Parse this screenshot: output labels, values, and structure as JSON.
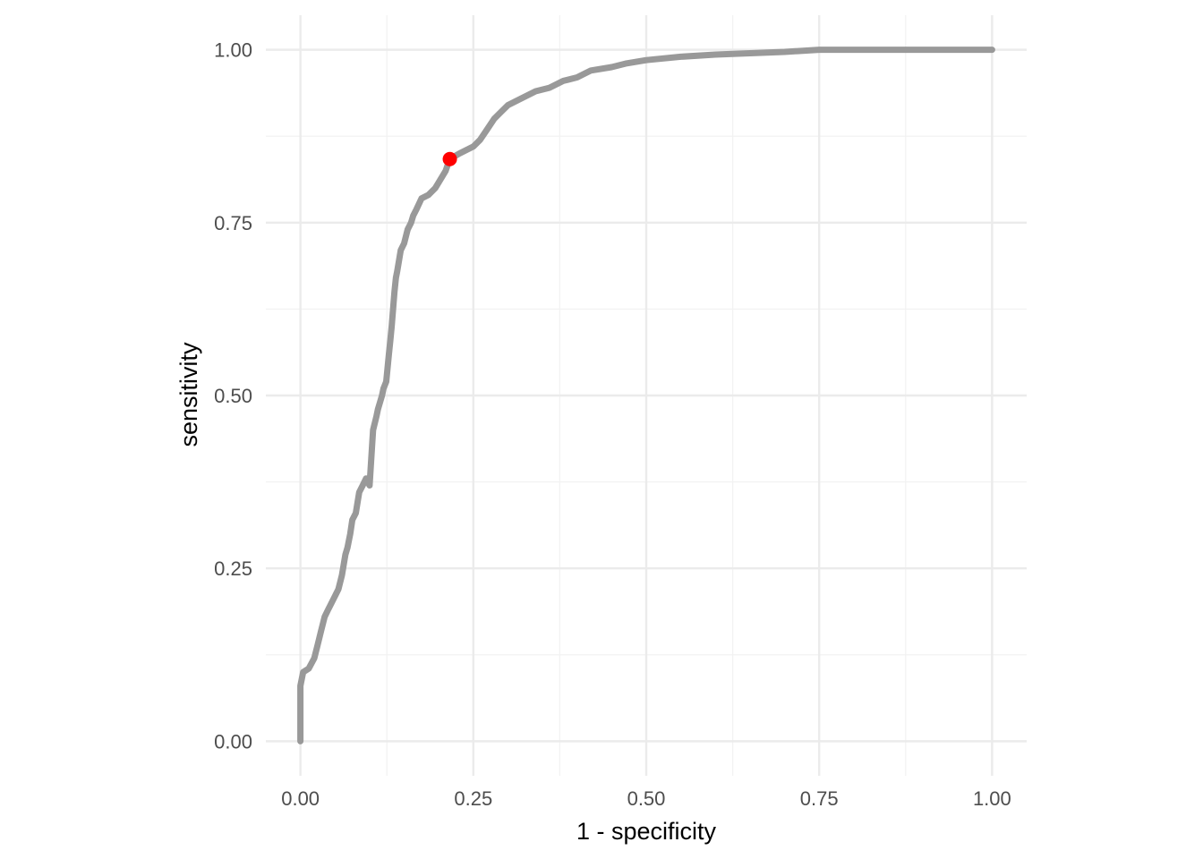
{
  "chart_data": {
    "type": "line",
    "title": "",
    "xlabel": "1 - specificity",
    "ylabel": "sensitivity",
    "xlim": [
      -0.05,
      1.05
    ],
    "ylim": [
      -0.05,
      1.05
    ],
    "x_ticks": [
      0,
      0.25,
      0.5,
      0.75,
      1
    ],
    "x_tick_labels": [
      "0.00",
      "0.25",
      "0.50",
      "0.75",
      "1.00"
    ],
    "y_ticks": [
      0,
      0.25,
      0.5,
      0.75,
      1
    ],
    "y_tick_labels": [
      "0.00",
      "0.25",
      "0.50",
      "0.75",
      "1.00"
    ],
    "grid": true,
    "legend": "none",
    "series": [
      {
        "color": "#999999",
        "x": [
          0,
          0,
          0.004,
          0.012,
          0.02,
          0.025,
          0.03,
          0.035,
          0.04,
          0.045,
          0.05,
          0.055,
          0.06,
          0.065,
          0.068,
          0.072,
          0.075,
          0.08,
          0.085,
          0.09,
          0.095,
          0.1,
          0.105,
          0.11,
          0.112,
          0.115,
          0.118,
          0.12,
          0.124,
          0.128,
          0.13,
          0.132,
          0.136,
          0.138,
          0.14,
          0.145,
          0.15,
          0.155,
          0.16,
          0.163,
          0.168,
          0.175,
          0.185,
          0.195,
          0.21,
          0.216,
          0.23,
          0.25,
          0.26,
          0.27,
          0.28,
          0.29,
          0.3,
          0.32,
          0.34,
          0.36,
          0.38,
          0.4,
          0.42,
          0.45,
          0.47,
          0.5,
          0.55,
          0.6,
          0.7,
          0.75,
          0.8,
          1.0
        ],
        "y": [
          0,
          0.08,
          0.1,
          0.105,
          0.12,
          0.14,
          0.16,
          0.18,
          0.19,
          0.2,
          0.21,
          0.22,
          0.24,
          0.27,
          0.28,
          0.3,
          0.32,
          0.33,
          0.36,
          0.37,
          0.38,
          0.37,
          0.45,
          0.47,
          0.48,
          0.49,
          0.5,
          0.51,
          0.52,
          0.56,
          0.58,
          0.6,
          0.65,
          0.67,
          0.68,
          0.71,
          0.72,
          0.74,
          0.75,
          0.76,
          0.77,
          0.785,
          0.79,
          0.8,
          0.825,
          0.842,
          0.85,
          0.86,
          0.87,
          0.885,
          0.9,
          0.91,
          0.92,
          0.93,
          0.94,
          0.945,
          0.955,
          0.96,
          0.97,
          0.975,
          0.98,
          0.985,
          0.99,
          0.993,
          0.997,
          1.0,
          1.0,
          1.0
        ]
      }
    ],
    "highlight_point": {
      "x": 0.216,
      "y": 0.842,
      "color": "#ff0000"
    }
  }
}
